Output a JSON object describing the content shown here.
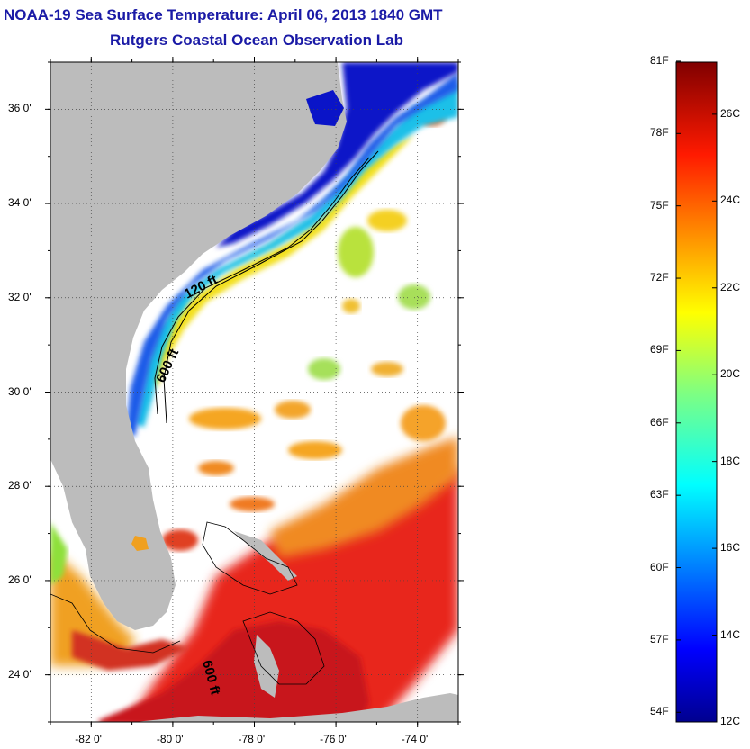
{
  "header": {
    "title": "NOAA-19 Sea Surface Temperature:  April 06, 2013 1840 GMT",
    "subtitle": "Rutgers Coastal Ocean Observation Lab"
  },
  "map": {
    "lon_ticks": [
      "-82 0'",
      "-80 0'",
      "-78 0'",
      "-76 0'",
      "-74 0'"
    ],
    "lat_ticks": [
      "36 0'",
      "34 0'",
      "32 0'",
      "30 0'",
      "28 0'",
      "26 0'",
      "24 0'"
    ],
    "lon_range": [
      -83.0,
      -73.0
    ],
    "lat_range": [
      23.0,
      37.0
    ],
    "contour_labels": [
      "120 ft",
      "600 ft",
      "600 ft"
    ],
    "land_color": "#bcbcbc"
  },
  "colorbar": {
    "fahrenheit_labels": [
      "81F",
      "78F",
      "75F",
      "72F",
      "69F",
      "66F",
      "63F",
      "60F",
      "57F",
      "54F"
    ],
    "celsius_labels": [
      "26C",
      "24C",
      "22C",
      "20C",
      "18C",
      "16C",
      "14C",
      "12C"
    ],
    "colormap": "jet",
    "range_celsius": [
      12,
      27.2
    ]
  }
}
